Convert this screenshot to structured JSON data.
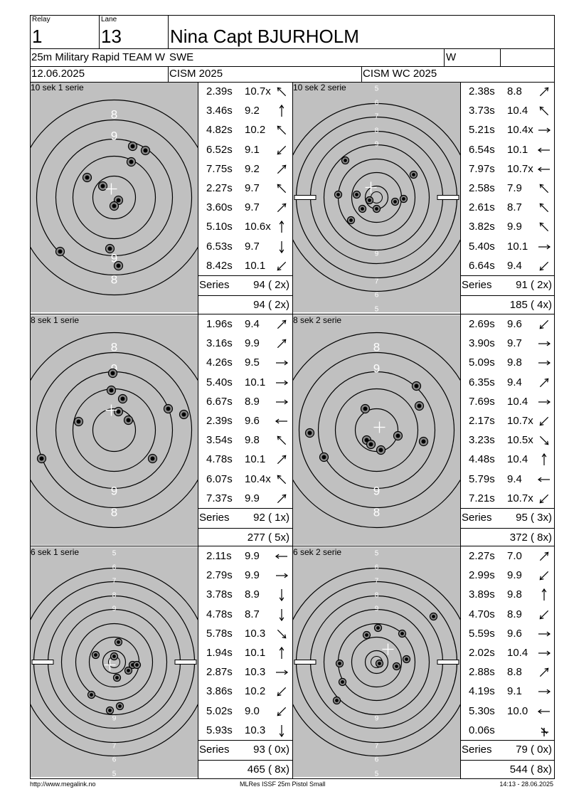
{
  "header": {
    "relay_label": "Relay",
    "relay_value": "1",
    "lane_label": "Lane",
    "lane_value": "13",
    "athlete_name": "Nina Capt BJURHOLM",
    "event": "25m Military Rapid TEAM W",
    "nation": "SWE",
    "gender": "W",
    "date": "12.06.2025",
    "competition": "CISM 2025",
    "championship": "CISM WC 2025"
  },
  "sections": [
    {
      "label": "10 sek 1 serie",
      "shots": [
        {
          "time": "2.39s",
          "score": "10.7x",
          "dir": "nw"
        },
        {
          "time": "3.46s",
          "score": "9.2",
          "dir": "n"
        },
        {
          "time": "4.82s",
          "score": "10.2",
          "dir": "nw"
        },
        {
          "time": "6.52s",
          "score": "9.1",
          "dir": "sw"
        },
        {
          "time": "7.75s",
          "score": "9.2",
          "dir": "ne"
        },
        {
          "time": "2.27s",
          "score": "9.7",
          "dir": "nw"
        },
        {
          "time": "3.60s",
          "score": "9.7",
          "dir": "ne"
        },
        {
          "time": "5.10s",
          "score": "10.6x",
          "dir": "n"
        },
        {
          "time": "6.53s",
          "score": "9.7",
          "dir": "s"
        },
        {
          "time": "8.42s",
          "score": "10.1",
          "dir": "sw"
        }
      ],
      "series_label": "Series",
      "series_value": "94 ( 2x)",
      "total_value": "94 ( 2x)"
    },
    {
      "label": "10 sek 2 serie",
      "shots": [
        {
          "time": "2.38s",
          "score": "8.8",
          "dir": "ne"
        },
        {
          "time": "3.73s",
          "score": "10.4",
          "dir": "nw"
        },
        {
          "time": "5.21s",
          "score": "10.4x",
          "dir": "e"
        },
        {
          "time": "6.54s",
          "score": "10.1",
          "dir": "w"
        },
        {
          "time": "7.97s",
          "score": "10.7x",
          "dir": "w"
        },
        {
          "time": "2.58s",
          "score": "7.9",
          "dir": "nw"
        },
        {
          "time": "2.61s",
          "score": "8.7",
          "dir": "nw"
        },
        {
          "time": "3.82s",
          "score": "9.9",
          "dir": "nw"
        },
        {
          "time": "5.40s",
          "score": "10.1",
          "dir": "e"
        },
        {
          "time": "6.64s",
          "score": "9.4",
          "dir": "sw"
        }
      ],
      "series_label": "Series",
      "series_value": "91 ( 2x)",
      "total_value": "185 ( 4x)"
    },
    {
      "label": "8 sek 1 serie",
      "shots": [
        {
          "time": "1.96s",
          "score": "9.4",
          "dir": "ne"
        },
        {
          "time": "3.16s",
          "score": "9.9",
          "dir": "ne"
        },
        {
          "time": "4.26s",
          "score": "9.5",
          "dir": "e"
        },
        {
          "time": "5.40s",
          "score": "10.1",
          "dir": "e"
        },
        {
          "time": "6.67s",
          "score": "8.9",
          "dir": "e"
        },
        {
          "time": "2.39s",
          "score": "9.6",
          "dir": "w"
        },
        {
          "time": "3.54s",
          "score": "9.8",
          "dir": "nw"
        },
        {
          "time": "4.78s",
          "score": "10.1",
          "dir": "ne"
        },
        {
          "time": "6.07s",
          "score": "10.4x",
          "dir": "nw"
        },
        {
          "time": "7.37s",
          "score": "9.9",
          "dir": "ne"
        }
      ],
      "series_label": "Series",
      "series_value": "92 ( 1x)",
      "total_value": "277 ( 5x)"
    },
    {
      "label": "8 sek 2 serie",
      "shots": [
        {
          "time": "2.69s",
          "score": "9.6",
          "dir": "sw"
        },
        {
          "time": "3.90s",
          "score": "9.7",
          "dir": "e"
        },
        {
          "time": "5.09s",
          "score": "9.8",
          "dir": "e"
        },
        {
          "time": "6.35s",
          "score": "9.4",
          "dir": "ne"
        },
        {
          "time": "7.69s",
          "score": "10.4",
          "dir": "e"
        },
        {
          "time": "2.17s",
          "score": "10.7x",
          "dir": "sw"
        },
        {
          "time": "3.23s",
          "score": "10.5x",
          "dir": "se"
        },
        {
          "time": "4.48s",
          "score": "10.4",
          "dir": "n"
        },
        {
          "time": "5.79s",
          "score": "9.4",
          "dir": "w"
        },
        {
          "time": "7.21s",
          "score": "10.7x",
          "dir": "sw"
        }
      ],
      "series_label": "Series",
      "series_value": "95 ( 3x)",
      "total_value": "372 ( 8x)"
    },
    {
      "label": "6 sek 1 serie",
      "shots": [
        {
          "time": "2.11s",
          "score": "9.9",
          "dir": "w"
        },
        {
          "time": "2.79s",
          "score": "9.9",
          "dir": "e"
        },
        {
          "time": "3.78s",
          "score": "8.9",
          "dir": "s"
        },
        {
          "time": "4.78s",
          "score": "8.7",
          "dir": "s"
        },
        {
          "time": "5.78s",
          "score": "10.3",
          "dir": "se"
        },
        {
          "time": "1.94s",
          "score": "10.1",
          "dir": "n"
        },
        {
          "time": "2.87s",
          "score": "10.3",
          "dir": "e"
        },
        {
          "time": "3.86s",
          "score": "10.2",
          "dir": "sw"
        },
        {
          "time": "5.02s",
          "score": "9.0",
          "dir": "sw"
        },
        {
          "time": "5.93s",
          "score": "10.3",
          "dir": "s"
        }
      ],
      "series_label": "Series",
      "series_value": "93 ( 0x)",
      "total_value": "465 ( 8x)"
    },
    {
      "label": "6 sek 2 serie",
      "shots": [
        {
          "time": "2.27s",
          "score": "7.0",
          "dir": "ne"
        },
        {
          "time": "2.99s",
          "score": "9.9",
          "dir": "sw"
        },
        {
          "time": "3.89s",
          "score": "9.8",
          "dir": "n"
        },
        {
          "time": "4.70s",
          "score": "8.9",
          "dir": "sw"
        },
        {
          "time": "5.59s",
          "score": "9.6",
          "dir": "e"
        },
        {
          "time": "2.02s",
          "score": "10.4",
          "dir": "e"
        },
        {
          "time": "2.88s",
          "score": "8.8",
          "dir": "ne"
        },
        {
          "time": "4.19s",
          "score": "9.1",
          "dir": "e"
        },
        {
          "time": "5.30s",
          "score": "10.0",
          "dir": "w"
        },
        {
          "time": "0.06s",
          "score": "",
          "dir": "center-mark"
        }
      ],
      "series_label": "Series",
      "series_value": "79 ( 0x)",
      "total_value": "544 ( 8x)"
    }
  ],
  "footer": {
    "url": "http://www.megalink.no",
    "software": "MLRes ISSF 25m Pistol Small",
    "timestamp": "14:13 - 28.06.2025"
  },
  "colors": {
    "target_gray": "#c0c0c0",
    "ring_line": "#000000",
    "ring_number": "#ffffff",
    "background": "#ffffff"
  }
}
